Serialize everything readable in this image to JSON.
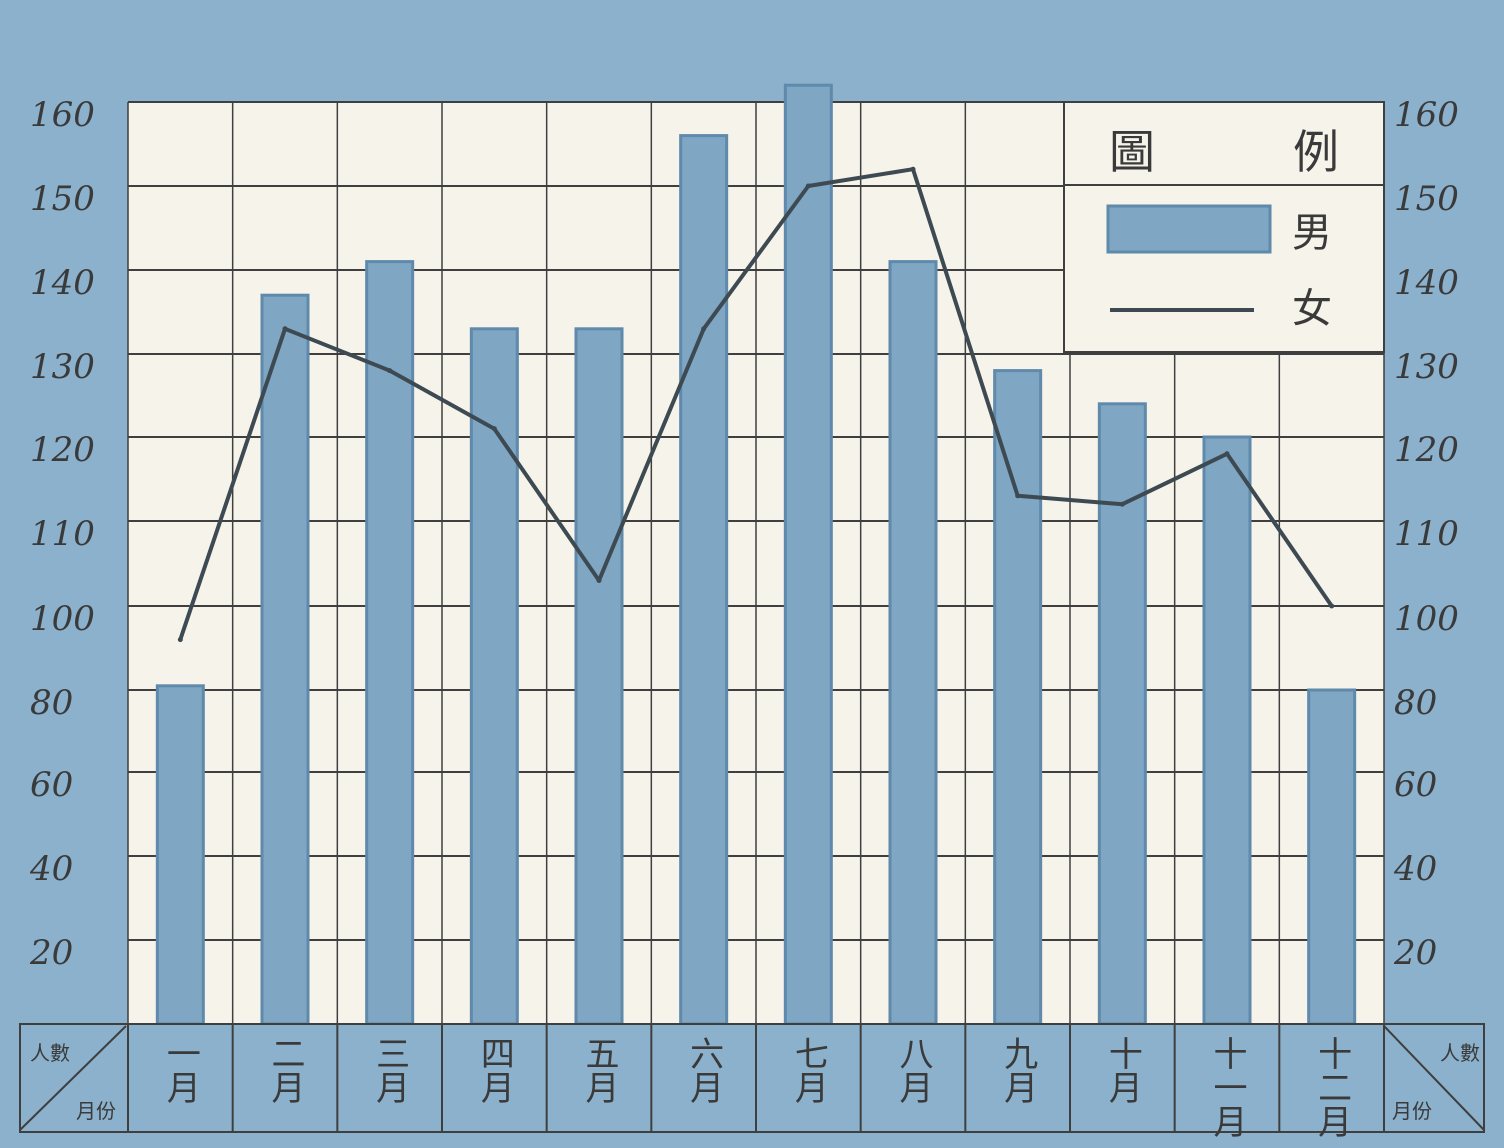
{
  "chart_data": {
    "type": "bar",
    "categories": [
      "一月",
      "二月",
      "三月",
      "四月",
      "五月",
      "六月",
      "七月",
      "八月",
      "九月",
      "十月",
      "十一月",
      "十二月"
    ],
    "series": [
      {
        "name": "男",
        "kind": "bar",
        "values": [
          81,
          137,
          141,
          133,
          133,
          156,
          162,
          141,
          128,
          124,
          120,
          80
        ]
      },
      {
        "name": "女",
        "kind": "line",
        "values": [
          92,
          133,
          128,
          121,
          103,
          133,
          150,
          152,
          113,
          112,
          118,
          100
        ]
      }
    ],
    "left_ticks": [
      "160",
      "150",
      "140",
      "130",
      "120",
      "110",
      "100",
      "80",
      "60",
      "40",
      "20"
    ],
    "right_ticks": [
      "160",
      "150",
      "140",
      "130",
      "120",
      "110",
      "100",
      "80",
      "60",
      "40",
      "20"
    ],
    "legend": {
      "title": "例　圖",
      "title_display": "圖　　　例",
      "items": [
        "男",
        "女"
      ],
      "placement": "top-right"
    },
    "corner_left": {
      "top": "人數",
      "bottom": "月份"
    },
    "corner_right": {
      "top": "人數",
      "bottom": "月份"
    },
    "grid": true,
    "colors": {
      "bar": "#7fa6c3",
      "bar_edge": "#5f8aab",
      "line": "#3e4a52",
      "frame": "#8bb1cc",
      "grid": "#3f3f3f",
      "paper": "#f6f3ea"
    }
  }
}
